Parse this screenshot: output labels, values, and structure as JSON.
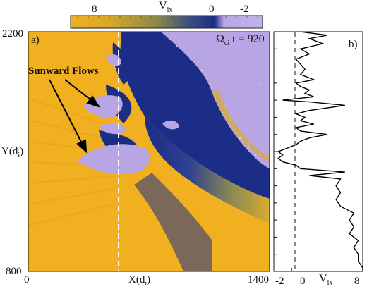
{
  "colorbar": {
    "label": "V",
    "label_sub": "ix",
    "ticks": [
      "8",
      "0",
      "-2"
    ],
    "colors": {
      "high": "#f0b020",
      "zero": "#1b2d86",
      "low": "#b8a6e4"
    }
  },
  "panel_a": {
    "tag": "a)",
    "time_label": "Ω",
    "time_sub": "ci",
    "time_value": " t = 920",
    "annotation": "Sunward Flows",
    "y_axis": {
      "top": "2200",
      "bottom": "800",
      "label": "Y(d",
      "label_sub": "i",
      "label_end": ")"
    },
    "x_axis": {
      "left": "0",
      "right": "1400",
      "label": "X(d",
      "label_sub": "i",
      "label_end": ")"
    }
  },
  "panel_b": {
    "tag": "b)",
    "x_ticks": [
      "-2",
      "0",
      "8"
    ],
    "x_label": "V",
    "x_label_sub": "ix"
  },
  "chart_data": {
    "type": "line",
    "title": "",
    "xlabel": "Vix",
    "ylabel": "",
    "xlim": [
      -2,
      8
    ],
    "ylim": [
      800,
      2200
    ],
    "grid": false,
    "series": [
      {
        "y": [
          2200,
          2180,
          2160,
          2130,
          2100,
          2070,
          2040,
          2010,
          1980,
          1950,
          1920,
          1900,
          1880,
          1860,
          1840,
          1820,
          1800,
          1790,
          1770,
          1740,
          1720,
          1700,
          1680,
          1660,
          1640,
          1620,
          1600,
          1580,
          1560,
          1540,
          1520,
          1500,
          1480,
          1460,
          1440,
          1420,
          1400,
          1380,
          1360,
          1340,
          1300,
          1260,
          1220,
          1180,
          1140,
          1100,
          1060,
          1020,
          980,
          940,
          900,
          860,
          820,
          800
        ],
        "x": [
          1,
          4,
          2,
          3.5,
          1,
          2,
          0.5,
          1,
          1.5,
          1,
          2.5,
          0.5,
          1,
          2,
          1.5,
          2.5,
          -1,
          2,
          6,
          2,
          0.5,
          1.5,
          1,
          2.5,
          0.5,
          1,
          4,
          2,
          1,
          0.5,
          -0.5,
          -1.5,
          -1,
          -1.5,
          -1,
          0.5,
          1,
          6,
          2,
          5.5,
          5,
          5.5,
          5,
          5.5,
          7,
          6.5,
          7,
          6.5,
          7.5,
          7,
          7.5,
          7.5,
          8,
          8
        ]
      }
    ]
  }
}
